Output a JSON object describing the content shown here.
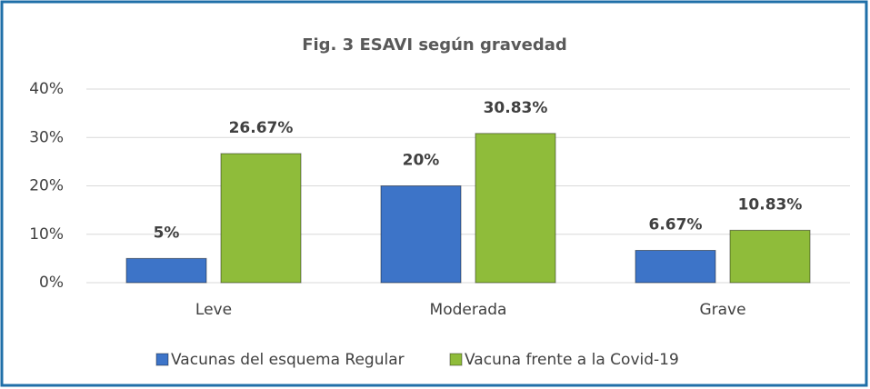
{
  "chart_data": {
    "type": "bar",
    "title": "Fig. 3 ESAVI según gravedad",
    "categories": [
      "Leve",
      "Moderada",
      "Grave"
    ],
    "series": [
      {
        "name": "Vacunas del esquema Regular",
        "color": "#3d74c8",
        "values": [
          5,
          20,
          6.67
        ],
        "value_labels": [
          "5%",
          "20%",
          "6.67%"
        ]
      },
      {
        "name": "Vacuna frente a la Covid-19",
        "color": "#8fbc3a",
        "values": [
          26.67,
          30.83,
          10.83
        ],
        "value_labels": [
          "26.67%",
          "30.83%",
          "10.83%"
        ]
      }
    ],
    "ylim": [
      0,
      40
    ],
    "yticks": [
      {
        "value": 0,
        "label": "0%"
      },
      {
        "value": 10,
        "label": "10%"
      },
      {
        "value": 20,
        "label": "20%"
      },
      {
        "value": 30,
        "label": "30%"
      },
      {
        "value": 40,
        "label": "40%"
      }
    ],
    "grid": true,
    "legend": "bottom"
  }
}
